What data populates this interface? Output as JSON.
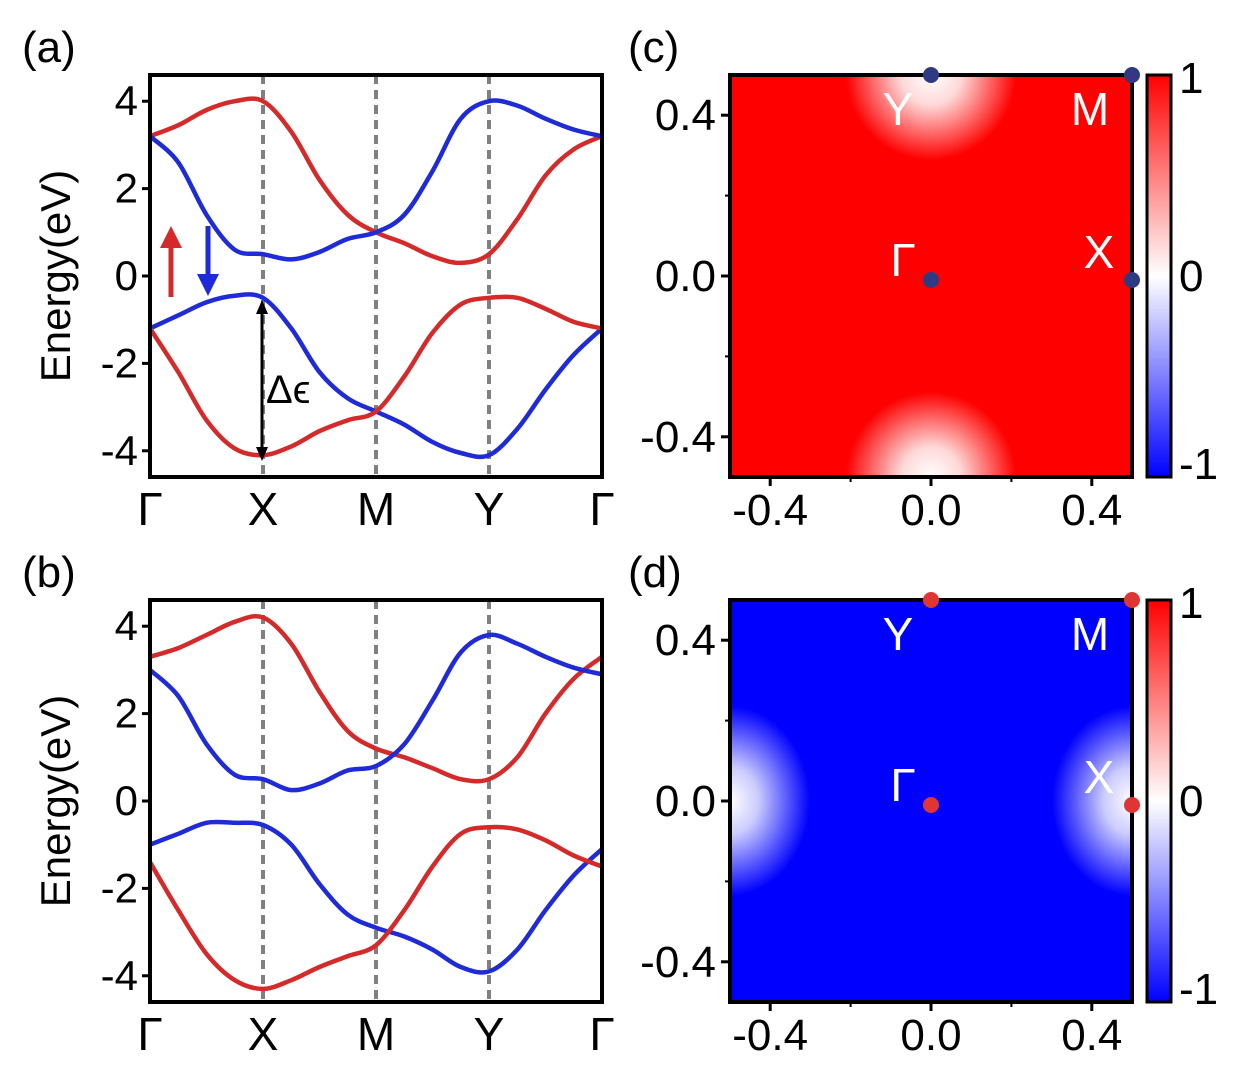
{
  "chart_data": [
    {
      "panel": "(a)",
      "type": "line",
      "ylabel": "Energy(eV)",
      "ylim": [
        -4.6,
        4.6
      ],
      "yticks": [
        "4",
        "2",
        "0",
        "-2",
        "-4"
      ],
      "ytick_values": [
        4,
        2,
        0,
        -2,
        -4
      ],
      "xticks": [
        "Γ",
        "X",
        "M",
        "Y",
        "Γ"
      ],
      "k_path_points": [
        0,
        1,
        2,
        3,
        4
      ],
      "vlines_at": [
        1,
        2,
        3
      ],
      "spin_labels": {
        "up": "↑",
        "down": "↓"
      },
      "annotation": "Δϵ",
      "x": [
        0,
        0.25,
        0.5,
        0.75,
        1,
        1.25,
        1.5,
        1.75,
        2,
        2.25,
        2.5,
        2.75,
        3,
        3.25,
        3.5,
        3.75,
        4
      ],
      "series": [
        {
          "color": "#d42a2a",
          "values": [
            3.2,
            3.45,
            3.8,
            4.0,
            4.0,
            3.3,
            2.2,
            1.4,
            1.0,
            0.75,
            0.45,
            0.3,
            0.5,
            1.3,
            2.3,
            2.9,
            3.2
          ]
        },
        {
          "color": "#1f2bd6",
          "values": [
            3.2,
            2.6,
            1.4,
            0.6,
            0.5,
            0.38,
            0.55,
            0.85,
            1.0,
            1.4,
            2.4,
            3.6,
            4.0,
            3.9,
            3.6,
            3.35,
            3.2
          ]
        },
        {
          "color": "#1f2bd6",
          "values": [
            -1.2,
            -0.9,
            -0.6,
            -0.45,
            -0.5,
            -1.2,
            -2.2,
            -2.8,
            -3.1,
            -3.4,
            -3.8,
            -4.05,
            -4.1,
            -3.5,
            -2.6,
            -1.8,
            -1.2
          ]
        },
        {
          "color": "#d42a2a",
          "values": [
            -1.2,
            -2.2,
            -3.3,
            -3.95,
            -4.1,
            -3.9,
            -3.55,
            -3.3,
            -3.1,
            -2.3,
            -1.3,
            -0.65,
            -0.5,
            -0.5,
            -0.75,
            -1.05,
            -1.2
          ]
        }
      ]
    },
    {
      "panel": "(b)",
      "type": "line",
      "ylabel": "Energy(eV)",
      "ylim": [
        -4.6,
        4.6
      ],
      "yticks": [
        "4",
        "2",
        "0",
        "-2",
        "-4"
      ],
      "ytick_values": [
        4,
        2,
        0,
        -2,
        -4
      ],
      "xticks": [
        "Γ",
        "X",
        "M",
        "Y",
        "Γ"
      ],
      "k_path_points": [
        0,
        1,
        2,
        3,
        4
      ],
      "vlines_at": [
        1,
        2,
        3
      ],
      "x": [
        0,
        0.25,
        0.5,
        0.75,
        1,
        1.25,
        1.5,
        1.75,
        2,
        2.25,
        2.5,
        2.75,
        3,
        3.25,
        3.5,
        3.75,
        4
      ],
      "series": [
        {
          "color": "#d42a2a",
          "values": [
            3.3,
            3.5,
            3.8,
            4.1,
            4.2,
            3.6,
            2.5,
            1.6,
            1.2,
            1.0,
            0.75,
            0.5,
            0.5,
            1.0,
            2.0,
            2.8,
            3.3
          ]
        },
        {
          "color": "#1f2bd6",
          "values": [
            3.0,
            2.4,
            1.3,
            0.6,
            0.5,
            0.25,
            0.4,
            0.7,
            0.8,
            1.3,
            2.3,
            3.4,
            3.8,
            3.6,
            3.3,
            3.05,
            2.9
          ]
        },
        {
          "color": "#1f2bd6",
          "values": [
            -1.0,
            -0.75,
            -0.5,
            -0.5,
            -0.55,
            -1.0,
            -1.9,
            -2.6,
            -2.9,
            -3.1,
            -3.4,
            -3.8,
            -3.9,
            -3.4,
            -2.5,
            -1.7,
            -1.1
          ]
        },
        {
          "color": "#d42a2a",
          "values": [
            -1.4,
            -2.5,
            -3.5,
            -4.1,
            -4.3,
            -4.1,
            -3.8,
            -3.55,
            -3.3,
            -2.5,
            -1.5,
            -0.75,
            -0.6,
            -0.65,
            -0.9,
            -1.25,
            -1.5
          ]
        }
      ]
    },
    {
      "panel": "(c)",
      "type": "heatmap",
      "xlim": [
        -0.5,
        0.5
      ],
      "ylim": [
        -0.5,
        0.5
      ],
      "xticks": [
        "-0.4",
        "0.0",
        "0.4"
      ],
      "xtick_values": [
        -0.4,
        0.0,
        0.4
      ],
      "yticks": [
        "0.4",
        "0.0",
        "-0.4"
      ],
      "ytick_values": [
        0.4,
        0.0,
        -0.4
      ],
      "colorbar": {
        "ticks": [
          "1",
          "0",
          "-1"
        ],
        "tick_values": [
          1,
          0,
          -1
        ]
      },
      "base_value": 1,
      "features": [
        {
          "kx": 0.0,
          "ky": 0.5,
          "value": 0
        },
        {
          "kx": 0.0,
          "ky": -0.5,
          "value": 0
        }
      ],
      "marker_color": "#2e3a82",
      "points": [
        {
          "label": "Y",
          "kx": 0.0,
          "ky": 0.5
        },
        {
          "label": "M",
          "kx": 0.5,
          "ky": 0.5
        },
        {
          "label": "Γ",
          "kx": 0.0,
          "ky": 0.0
        },
        {
          "label": "X",
          "kx": 0.5,
          "ky": 0.0
        }
      ]
    },
    {
      "panel": "(d)",
      "type": "heatmap",
      "xlim": [
        -0.5,
        0.5
      ],
      "ylim": [
        -0.5,
        0.5
      ],
      "xticks": [
        "-0.4",
        "0.0",
        "0.4"
      ],
      "xtick_values": [
        -0.4,
        0.0,
        0.4
      ],
      "yticks": [
        "0.4",
        "0.0",
        "-0.4"
      ],
      "ytick_values": [
        0.4,
        0.0,
        -0.4
      ],
      "colorbar": {
        "ticks": [
          "1",
          "0",
          "-1"
        ],
        "tick_values": [
          1,
          0,
          -1
        ]
      },
      "base_value": -1,
      "features": [
        {
          "kx": -0.5,
          "ky": 0.0,
          "value": 0
        },
        {
          "kx": 0.5,
          "ky": 0.0,
          "value": 0
        }
      ],
      "marker_color": "#e03535",
      "points": [
        {
          "label": "Y",
          "kx": 0.0,
          "ky": 0.5
        },
        {
          "label": "M",
          "kx": 0.5,
          "ky": 0.5
        },
        {
          "label": "Γ",
          "kx": 0.0,
          "ky": 0.0
        },
        {
          "label": "X",
          "kx": 0.5,
          "ky": 0.0
        }
      ]
    }
  ],
  "colors": {
    "spin_up": "#d42a2a",
    "spin_down": "#1f2bd6",
    "positive": "#ff0000",
    "zero": "#ffffff",
    "negative": "#0000ff",
    "vline": "#808080"
  }
}
